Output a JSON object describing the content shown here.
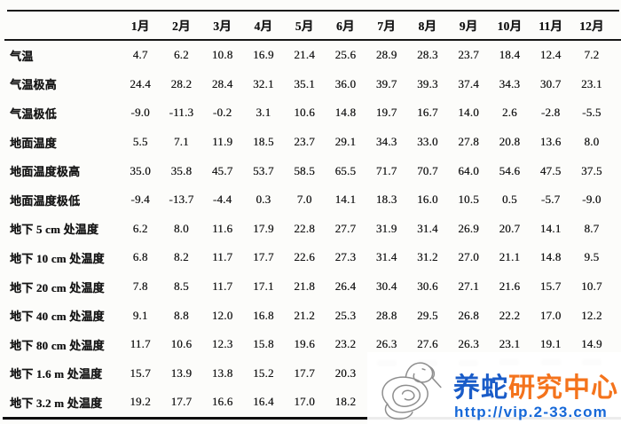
{
  "table": {
    "months": [
      "1月",
      "2月",
      "3月",
      "4月",
      "5月",
      "6月",
      "7月",
      "8月",
      "9月",
      "10月",
      "11月",
      "12月"
    ],
    "rows": [
      {
        "label": "气温",
        "values": [
          "4.7",
          "6.2",
          "10.8",
          "16.9",
          "21.4",
          "25.6",
          "28.9",
          "28.3",
          "23.7",
          "18.4",
          "12.4",
          "7.2"
        ]
      },
      {
        "label": "气温极高",
        "values": [
          "24.4",
          "28.2",
          "28.4",
          "32.1",
          "35.1",
          "36.0",
          "39.7",
          "39.3",
          "37.4",
          "34.3",
          "30.7",
          "23.1"
        ]
      },
      {
        "label": "气温极低",
        "values": [
          "-9.0",
          "-11.3",
          "-0.2",
          "3.1",
          "10.6",
          "14.8",
          "19.7",
          "16.7",
          "14.0",
          "2.6",
          "-2.8",
          "-5.5"
        ]
      },
      {
        "label": "地面温度",
        "values": [
          "5.5",
          "7.1",
          "11.9",
          "18.5",
          "23.7",
          "29.1",
          "34.3",
          "33.0",
          "27.8",
          "20.8",
          "13.6",
          "8.0"
        ]
      },
      {
        "label": "地面温度极高",
        "values": [
          "35.0",
          "35.8",
          "45.7",
          "53.7",
          "58.5",
          "65.5",
          "71.7",
          "70.7",
          "64.0",
          "54.6",
          "47.5",
          "37.5"
        ]
      },
      {
        "label": "地面温度极低",
        "values": [
          "-9.4",
          "-13.7",
          "-4.4",
          "0.3",
          "7.0",
          "14.1",
          "18.3",
          "16.0",
          "10.5",
          "0.5",
          "-5.7",
          "-9.0"
        ]
      },
      {
        "label": "地下 5 cm 处温度",
        "values": [
          "6.2",
          "8.0",
          "11.6",
          "17.9",
          "22.8",
          "27.7",
          "31.9",
          "31.4",
          "26.9",
          "20.7",
          "14.1",
          "8.7"
        ]
      },
      {
        "label": "地下 10 cm 处温度",
        "values": [
          "6.8",
          "8.2",
          "11.7",
          "17.7",
          "22.6",
          "27.3",
          "31.4",
          "31.2",
          "27.0",
          "21.1",
          "14.8",
          "9.5"
        ]
      },
      {
        "label": "地下 20 cm 处温度",
        "values": [
          "7.8",
          "8.5",
          "11.7",
          "17.1",
          "21.8",
          "26.4",
          "30.4",
          "30.6",
          "27.1",
          "21.6",
          "15.7",
          "10.7"
        ]
      },
      {
        "label": "地下 40 cm 处温度",
        "values": [
          "9.1",
          "8.8",
          "12.0",
          "16.8",
          "21.2",
          "25.3",
          "28.8",
          "29.5",
          "26.8",
          "22.2",
          "17.0",
          "12.2"
        ]
      },
      {
        "label": "地下 80 cm 处温度",
        "values": [
          "11.7",
          "10.6",
          "12.3",
          "15.8",
          "19.6",
          "23.2",
          "26.3",
          "27.6",
          "26.3",
          "23.1",
          "19.1",
          "14.9"
        ]
      },
      {
        "label": "地下 1.6 m 处温度",
        "values": [
          "15.7",
          "13.9",
          "13.8",
          "15.2",
          "17.7",
          "20.3",
          "",
          "",
          "",
          "",
          "",
          ""
        ]
      },
      {
        "label": "地下 3.2 m 处温度",
        "values": [
          "19.2",
          "17.7",
          "16.6",
          "16.4",
          "17.0",
          "18.2",
          "",
          "",
          "",
          "",
          "",
          ""
        ]
      }
    ]
  },
  "watermark": {
    "title_blue": "养蛇",
    "title_orange": "研究中心",
    "url": "http://vip.2-33.com",
    "colors": {
      "title_blue": "#1a5cc8",
      "title_orange": "#f4731c",
      "url_blue": "#1668d8",
      "snake_gray": "#8e8e8e"
    }
  }
}
